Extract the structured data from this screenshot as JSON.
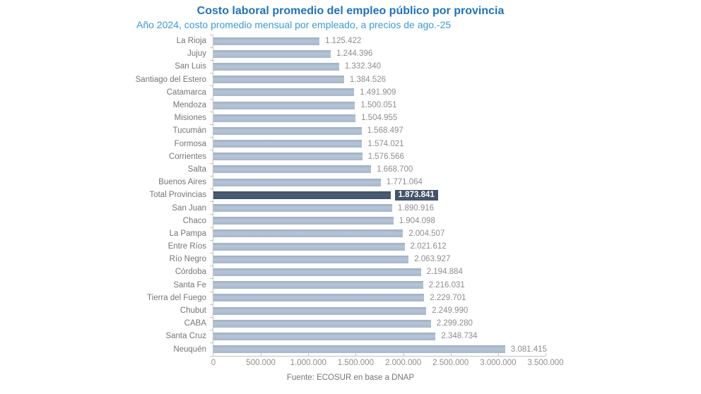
{
  "page": {
    "background": "#ffffff"
  },
  "chart_data": {
    "type": "bar",
    "orientation": "horizontal",
    "title": "Costo laboral promedio del empleo público por provincia",
    "subtitle": "Año 2024, costo promedio mensual por empleado, a precios de ago.-25",
    "source": "Fuente: ECOSUR en base a DNAP",
    "categories": [
      "La Rioja",
      "Jujuy",
      "San Luis",
      "Santiago del Estero",
      "Catamarca",
      "Mendoza",
      "Misiones",
      "Tucumán",
      "Formosa",
      "Corrientes",
      "Salta",
      "Buenos Aires",
      "Total Provincias",
      "San Juan",
      "Chaco",
      "La Pampa",
      "Entre Ríos",
      "Río Negro",
      "Córdoba",
      "Santa Fe",
      "Tierra del Fuego",
      "Chubut",
      "CABA",
      "Santa Cruz",
      "Neuquén"
    ],
    "values": [
      1125422,
      1244396,
      1332340,
      1384526,
      1491909,
      1500051,
      1504955,
      1568497,
      1574021,
      1576566,
      1668700,
      1771064,
      1873841,
      1890916,
      1904098,
      2004507,
      2021612,
      2063927,
      2194884,
      2216031,
      2229701,
      2249990,
      2299280,
      2348734,
      3081415
    ],
    "value_labels": [
      "1.125.422",
      "1.244.396",
      "1.332.340",
      "1.384.526",
      "1.491.909",
      "1.500.051",
      "1.504.955",
      "1.568.497",
      "1.574.021",
      "1.576.566",
      "1.668.700",
      "1.771.064",
      "1.873.841",
      "1.890.916",
      "1.904.098",
      "2.004.507",
      "2.021.612",
      "2.063.927",
      "2.194.884",
      "2.216.031",
      "2.229.701",
      "2.249.990",
      "2.299.280",
      "2.348.734",
      "3.081.415"
    ],
    "highlight_category": "Total Provincias",
    "highlight_index": 12,
    "xlim": [
      0,
      3500000
    ],
    "x_ticks": [
      0,
      500000,
      1000000,
      1500000,
      2000000,
      2500000,
      3000000,
      3500000
    ],
    "x_tick_labels": [
      "0",
      "500.000",
      "1.000.000",
      "1.500.000",
      "2.000.000",
      "2.500.000",
      "3.000.000",
      "3.500.000"
    ],
    "grid": "off",
    "legend": "none",
    "colors": {
      "bar": "#a9b8cc",
      "bar_highlight": "#44546a",
      "title": "#2173b8",
      "subtitle": "#3d9ad1",
      "category_label": "#757575",
      "value_label": "#8e8e8e",
      "axis": "#c3c3c3"
    }
  }
}
